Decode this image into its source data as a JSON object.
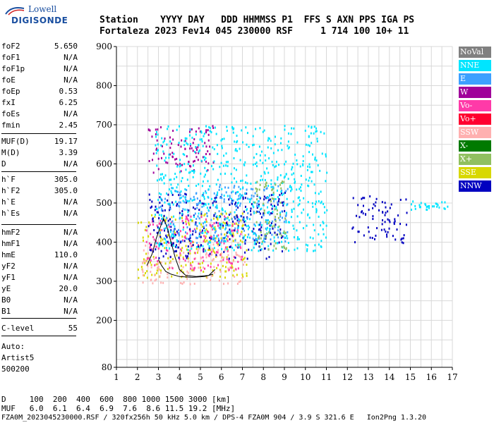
{
  "logo": {
    "line1": "Lowell",
    "line2": "DIGISONDE"
  },
  "header": {
    "row1": "Station    YYYY DAY   DDD HHMMSS P1  FFS S AXN PPS IGA PS",
    "row2": "Fortaleza 2023 Fev14 045 230000 RSF     1 714 100 10+ 11"
  },
  "params_group1": [
    {
      "name": "foF2",
      "value": "5.650"
    },
    {
      "name": "foF1",
      "value": "N/A"
    },
    {
      "name": "foF1p",
      "value": "N/A"
    },
    {
      "name": "foE",
      "value": "N/A"
    },
    {
      "name": "foEp",
      "value": "0.53"
    },
    {
      "name": "fxI",
      "value": "6.25"
    },
    {
      "name": "foEs",
      "value": "N/A"
    },
    {
      "name": "fmin",
      "value": "2.45"
    }
  ],
  "params_group2": [
    {
      "name": "MUF(D)",
      "value": "19.17"
    },
    {
      "name": "M(D)",
      "value": "3.39"
    },
    {
      "name": "D",
      "value": "N/A"
    }
  ],
  "params_group3": [
    {
      "name": "h`F",
      "value": "305.0"
    },
    {
      "name": "h`F2",
      "value": "305.0"
    },
    {
      "name": "h`E",
      "value": "N/A"
    },
    {
      "name": "h`Es",
      "value": "N/A"
    }
  ],
  "params_group4": [
    {
      "name": "hmF2",
      "value": "N/A"
    },
    {
      "name": "hmF1",
      "value": "N/A"
    },
    {
      "name": "hmE",
      "value": "110.0"
    },
    {
      "name": "yF2",
      "value": "N/A"
    },
    {
      "name": "yF1",
      "value": "N/A"
    },
    {
      "name": "yE",
      "value": "20.0"
    },
    {
      "name": "B0",
      "value": "N/A"
    },
    {
      "name": "B1",
      "value": "N/A"
    }
  ],
  "params_group5": [
    {
      "name": "C-level",
      "value": "55"
    }
  ],
  "autoscale": {
    "line1": "Auto:",
    "line2": "Artist5",
    "line3": "500200"
  },
  "legend": [
    {
      "label": "NoVal",
      "color": "#808080"
    },
    {
      "label": "NNE",
      "color": "#00e5ff"
    },
    {
      "label": "E",
      "color": "#3ca0ff"
    },
    {
      "label": "W",
      "color": "#a0009a"
    },
    {
      "label": "Vo-",
      "color": "#ff3aa8"
    },
    {
      "label": "Vo+",
      "color": "#ff0030"
    },
    {
      "label": "SSW",
      "color": "#ffb0b0"
    },
    {
      "label": "X-",
      "color": "#007a00"
    },
    {
      "label": "X+",
      "color": "#90c060"
    },
    {
      "label": "SSE",
      "color": "#d8d800"
    },
    {
      "label": "NNW",
      "color": "#0000c0"
    }
  ],
  "footer": {
    "row1": "D     100  200  400  600  800 1000 1500 3000 [km]",
    "row2": "MUF   6.0  6.1  6.4  6.9  7.6  8.6 11.5 19.2 [MHz]",
    "row3": "FZA0M_2023045230000.RSF / 320fx256h 50 kHz 5.0 km / DPS-4 FZA0M 904 / 3.9 S 321.6 E   Ion2Png 1.3.20"
  },
  "chart_data": {
    "type": "scatter",
    "title": "",
    "xlabel": "",
    "ylabel": "",
    "xlim": [
      1,
      17
    ],
    "ylim": [
      80,
      900
    ],
    "x_ticks": [
      1,
      2,
      3,
      4,
      5,
      6,
      7,
      8,
      9,
      10,
      11,
      12,
      13,
      14,
      15,
      16,
      17
    ],
    "y_ticks": [
      80,
      200,
      300,
      400,
      500,
      600,
      700,
      800,
      900
    ],
    "grid": true,
    "legend_position": "right",
    "echo_clusters": [
      {
        "name": "W",
        "x_range": [
          2.5,
          5.6
        ],
        "y_range": [
          580,
          700
        ]
      },
      {
        "name": "SSE",
        "x_range": [
          2.0,
          7.2
        ],
        "y_range": [
          310,
          480
        ]
      },
      {
        "name": "SSW",
        "x_range": [
          2.2,
          7.1
        ],
        "y_range": [
          295,
          400
        ]
      },
      {
        "name": "Vo-",
        "x_range": [
          2.4,
          7.0
        ],
        "y_range": [
          330,
          470
        ]
      },
      {
        "name": "NNW",
        "x_range": [
          2.5,
          9.0
        ],
        "y_range": [
          360,
          530
        ]
      },
      {
        "name": "E",
        "x_range": [
          3.0,
          9.2
        ],
        "y_range": [
          400,
          550
        ]
      },
      {
        "name": "NNE",
        "x_range": [
          2.8,
          11.0
        ],
        "y_range": [
          380,
          700
        ]
      },
      {
        "name": "X+",
        "x_range": [
          7.5,
          9.1
        ],
        "y_range": [
          380,
          560
        ]
      },
      {
        "name": "NNW",
        "x_range": [
          12.2,
          14.8
        ],
        "y_range": [
          400,
          520
        ]
      },
      {
        "name": "NNE",
        "x_range": [
          15.0,
          16.8
        ],
        "y_range": [
          485,
          510
        ]
      }
    ],
    "trace_lines": [
      {
        "name": "O-trace",
        "points": [
          [
            2.45,
            340
          ],
          [
            2.7,
            370
          ],
          [
            2.9,
            410
          ],
          [
            3.1,
            440
          ],
          [
            3.25,
            460
          ],
          [
            3.4,
            440
          ],
          [
            3.6,
            400
          ],
          [
            3.8,
            360
          ],
          [
            4.0,
            330
          ],
          [
            4.3,
            315
          ],
          [
            4.8,
            312
          ],
          [
            5.4,
            315
          ],
          [
            5.7,
            330
          ]
        ]
      },
      {
        "name": "X-trace",
        "points": [
          [
            3.0,
            355
          ],
          [
            3.15,
            340
          ],
          [
            3.35,
            325
          ],
          [
            3.6,
            318
          ],
          [
            4.0,
            312
          ],
          [
            4.6,
            310
          ],
          [
            5.2,
            312
          ],
          [
            5.6,
            318
          ]
        ]
      }
    ]
  }
}
